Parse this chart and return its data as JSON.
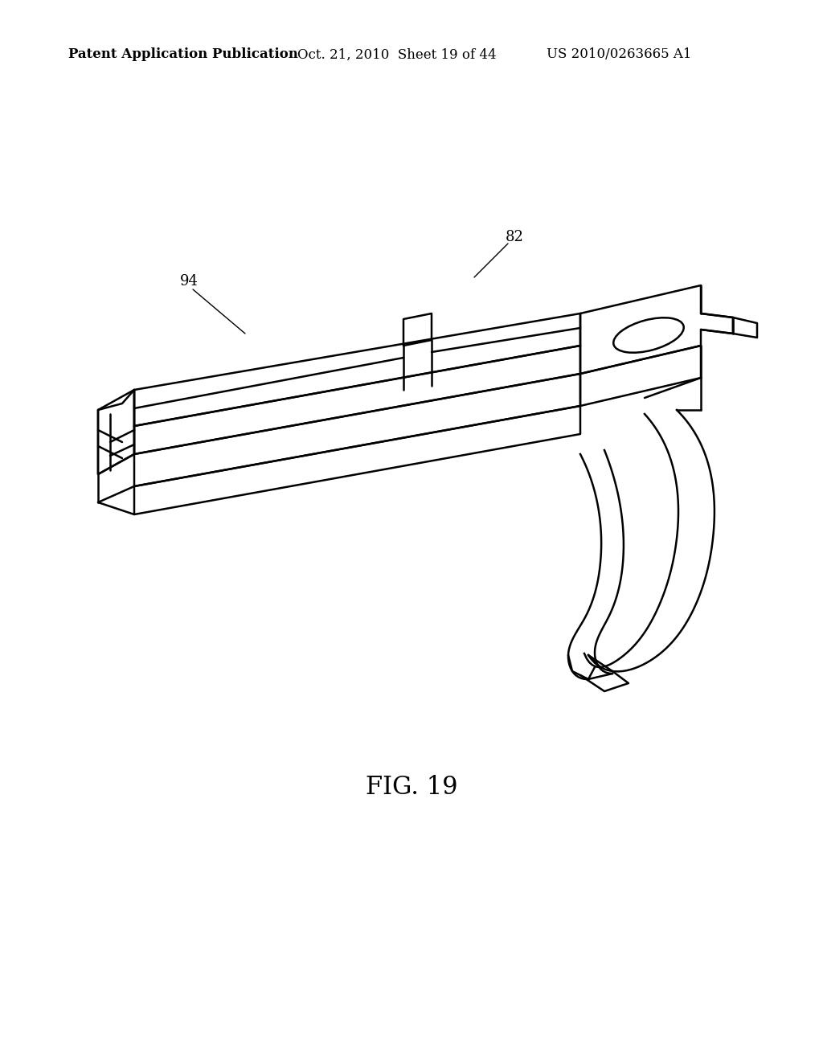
{
  "title": "FIG. 19",
  "header_left": "Patent Application Publication",
  "header_mid": "Oct. 21, 2010  Sheet 19 of 44",
  "header_right": "US 2010/0263665 A1",
  "label_82": "82",
  "label_94": "94",
  "bg_color": "#ffffff",
  "line_color": "#000000",
  "line_width": 1.8,
  "fig_label_fontsize": 22,
  "header_fontsize": 12,
  "ref_fontsize": 13
}
